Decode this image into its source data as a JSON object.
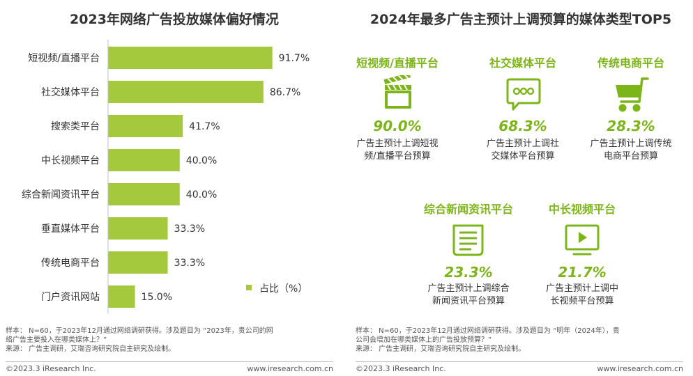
{
  "left": {
    "title": "2023年网络广告投放媒体偏好情况",
    "legend_label": "占比（%）",
    "note_line1": "样本：  N=60，于2023年12月通过网络调研获得。涉及题目为 “2023年，贵公司的网",
    "note_line2": "络广告主要投入在哪类媒体上？”",
    "source": "来源：  广告主调研，艾瑞咨询研究院自主研究及绘制。",
    "footer_left": "©2023.3 iResearch Inc.",
    "footer_right": "www.iresearch.com.cn"
  },
  "chart_data": {
    "type": "bar",
    "orientation": "horizontal",
    "title": "2023年网络广告投放媒体偏好情况",
    "categories": [
      "短视频/直播平台",
      "社交媒体平台",
      "搜索类平台",
      "中长视频平台",
      "综合新闻资讯平台",
      "垂直媒体平台",
      "传统电商平台",
      "门户资讯网站"
    ],
    "series": [
      {
        "name": "占比（%）",
        "values": [
          91.7,
          86.7,
          41.7,
          40.0,
          40.0,
          33.3,
          33.3,
          15.0
        ]
      }
    ],
    "value_labels": [
      "91.7%",
      "86.7%",
      "41.7%",
      "40.0%",
      "40.0%",
      "33.3%",
      "33.3%",
      "15.0%"
    ],
    "xlim": [
      0,
      100
    ],
    "grid": false,
    "legend_position": "bottom-right",
    "bar_color": "#a5c93d"
  },
  "right": {
    "title": "2024年最多广告主预计上调预算的媒体类型TOP5",
    "items": [
      {
        "name": "短视频/直播平台",
        "icon": "clapperboard-icon",
        "value": "90.0%",
        "desc1": "广告主预计上调短视",
        "desc2": "频/直播平台预算"
      },
      {
        "name": "社交媒体平台",
        "icon": "chat-bubble-icon",
        "value": "68.3%",
        "desc1": "广告主预计上调社",
        "desc2": "交媒体平台预算"
      },
      {
        "name": "传统电商平台",
        "icon": "shopping-cart-icon",
        "value": "28.3%",
        "desc1": "广告主预计上调传统",
        "desc2": "电商平台预算"
      },
      {
        "name": "综合新闻资讯平台",
        "icon": "newspaper-icon",
        "value": "23.3%",
        "desc1": "广告主预计上调综合",
        "desc2": "新闻资讯平台预算"
      },
      {
        "name": "中长视频平台",
        "icon": "video-play-icon",
        "value": "21.7%",
        "desc1": "广告主预计上调中",
        "desc2": "长视频平台预算"
      }
    ],
    "note_line1": "样本：  N=60，于2023年12月通过网络调研获得。涉及题目为 “明年（2024年），贵",
    "note_line2": "公司会增加在哪类媒体上的广告投放预算？”",
    "source": "来源：  广告主调研，艾瑞咨询研究院自主研究及绘制。",
    "footer_left": "©2023.3 iResearch Inc.",
    "footer_right": "www.iresearch.com.cn"
  },
  "colors": {
    "accent_green": "#7cb518",
    "bar_green": "#a5c93d",
    "text": "#333333"
  }
}
